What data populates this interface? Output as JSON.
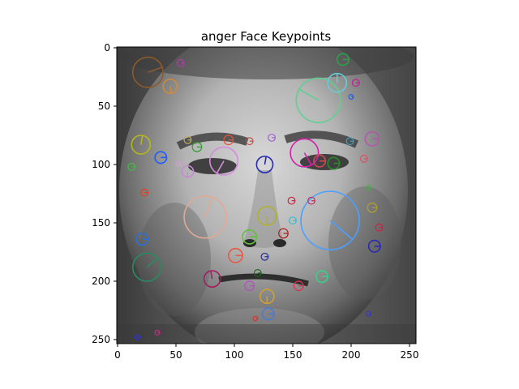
{
  "figure": {
    "title": "anger Face Keypoints"
  },
  "axes": {
    "x_range": [
      0,
      255
    ],
    "y_range": [
      255,
      0
    ],
    "x_ticks": [
      "0",
      "50",
      "100",
      "150",
      "200",
      "250"
    ],
    "y_ticks": [
      "0",
      "50",
      "100",
      "150",
      "200",
      "250"
    ]
  },
  "image": {
    "description_colors": {
      "background_dark": "#2a2a2a",
      "skin_light": "#b9b9b9"
    }
  },
  "keypoints": [
    {
      "x": 26,
      "y": 21,
      "r": 13,
      "angle": -20,
      "color": "#8b5a2b"
    },
    {
      "x": 45,
      "y": 33,
      "r": 6,
      "angle": 80,
      "color": "#d28a3a"
    },
    {
      "x": 54,
      "y": 13,
      "r": 3,
      "angle": 0,
      "color": "#b03ca8"
    },
    {
      "x": 20,
      "y": 83,
      "r": 8,
      "angle": -80,
      "color": "#b5b81a"
    },
    {
      "x": 37,
      "y": 94,
      "r": 5,
      "angle": 0,
      "color": "#1f5cff"
    },
    {
      "x": 60,
      "y": 106,
      "r": 5,
      "angle": 90,
      "color": "#c58bd3"
    },
    {
      "x": 68,
      "y": 85,
      "r": 4,
      "angle": 0,
      "color": "#2ca02c"
    },
    {
      "x": 91,
      "y": 97,
      "r": 12,
      "angle": 120,
      "color": "#d58ae0"
    },
    {
      "x": 95,
      "y": 79,
      "r": 4,
      "angle": 0,
      "color": "#e0553a"
    },
    {
      "x": 126,
      "y": 100,
      "r": 7,
      "angle": -80,
      "color": "#2b2bb0"
    },
    {
      "x": 160,
      "y": 90,
      "r": 12,
      "angle": 60,
      "color": "#d021a8"
    },
    {
      "x": 173,
      "y": 97,
      "r": 5,
      "angle": 0,
      "color": "#d6445a"
    },
    {
      "x": 185,
      "y": 99,
      "r": 5,
      "angle": 0,
      "color": "#2a8a2a"
    },
    {
      "x": 172,
      "y": 45,
      "r": 19,
      "angle": -150,
      "color": "#5fcf8f"
    },
    {
      "x": 188,
      "y": 30,
      "r": 8,
      "angle": -90,
      "color": "#69c9d4"
    },
    {
      "x": 193,
      "y": 10,
      "r": 5,
      "angle": 0,
      "color": "#2aa04a"
    },
    {
      "x": 182,
      "y": 148,
      "r": 25,
      "angle": 40,
      "color": "#4aa0ff"
    },
    {
      "x": 75,
      "y": 145,
      "r": 18,
      "angle": -70,
      "color": "#e0aa95"
    },
    {
      "x": 128,
      "y": 144,
      "r": 8,
      "angle": 90,
      "color": "#b0b030"
    },
    {
      "x": 113,
      "y": 162,
      "r": 6,
      "angle": 0,
      "color": "#60c23a"
    },
    {
      "x": 101,
      "y": 178,
      "r": 6,
      "angle": 0,
      "color": "#e65a40"
    },
    {
      "x": 81,
      "y": 198,
      "r": 7,
      "angle": -100,
      "color": "#a02060"
    },
    {
      "x": 25,
      "y": 188,
      "r": 12,
      "angle": -40,
      "color": "#2a8a60"
    },
    {
      "x": 21,
      "y": 164,
      "r": 5,
      "angle": 0,
      "color": "#2f6fd0"
    },
    {
      "x": 175,
      "y": 196,
      "r": 5,
      "angle": 0,
      "color": "#3ad088"
    },
    {
      "x": 128,
      "y": 213,
      "r": 6,
      "angle": 90,
      "color": "#d0a030"
    },
    {
      "x": 129,
      "y": 228,
      "r": 5,
      "angle": 0,
      "color": "#4a7ad8"
    },
    {
      "x": 220,
      "y": 170,
      "r": 5,
      "angle": 0,
      "color": "#2a2ab0"
    },
    {
      "x": 218,
      "y": 137,
      "r": 4,
      "angle": 0,
      "color": "#b0a030"
    },
    {
      "x": 224,
      "y": 154,
      "r": 3,
      "angle": 0,
      "color": "#d02040"
    },
    {
      "x": 218,
      "y": 78,
      "r": 6,
      "angle": 0,
      "color": "#b05aa8"
    },
    {
      "x": 150,
      "y": 148,
      "r": 3,
      "angle": 0,
      "color": "#30c0d0"
    },
    {
      "x": 149,
      "y": 131,
      "r": 3,
      "angle": 0,
      "color": "#d02040"
    },
    {
      "x": 142,
      "y": 159,
      "r": 4,
      "angle": 0,
      "color": "#b01818"
    },
    {
      "x": 155,
      "y": 204,
      "r": 4,
      "angle": 0,
      "color": "#e0304a"
    },
    {
      "x": 113,
      "y": 204,
      "r": 4,
      "angle": 0,
      "color": "#b050c0"
    },
    {
      "x": 120,
      "y": 193,
      "r": 3,
      "angle": 0,
      "color": "#1a6a1a"
    },
    {
      "x": 126,
      "y": 179,
      "r": 3,
      "angle": 0,
      "color": "#2a2a90"
    },
    {
      "x": 60,
      "y": 79,
      "r": 3,
      "angle": 0,
      "color": "#c0b060"
    },
    {
      "x": 113,
      "y": 80,
      "r": 3,
      "angle": 0,
      "color": "#c05040"
    },
    {
      "x": 132,
      "y": 77,
      "r": 3,
      "angle": 0,
      "color": "#a060d0"
    },
    {
      "x": 166,
      "y": 131,
      "r": 3,
      "angle": 0,
      "color": "#c03060"
    },
    {
      "x": 204,
      "y": 30,
      "r": 3,
      "angle": 0,
      "color": "#c02090"
    },
    {
      "x": 211,
      "y": 95,
      "r": 3,
      "angle": 0,
      "color": "#e05060"
    },
    {
      "x": 199,
      "y": 80,
      "r": 3,
      "angle": 0,
      "color": "#40a0c0"
    },
    {
      "x": 52,
      "y": 99,
      "r": 2,
      "angle": 0,
      "color": "#d0a0d0"
    },
    {
      "x": 23,
      "y": 124,
      "r": 3,
      "angle": 0,
      "color": "#e04020"
    },
    {
      "x": 12,
      "y": 102,
      "r": 3,
      "angle": 0,
      "color": "#40c040"
    },
    {
      "x": 200,
      "y": 42,
      "r": 2,
      "angle": 0,
      "color": "#2060e0"
    },
    {
      "x": 215,
      "y": 120,
      "r": 2,
      "angle": 0,
      "color": "#40b040"
    },
    {
      "x": 215,
      "y": 228,
      "r": 2,
      "angle": 0,
      "color": "#3a3ac0"
    },
    {
      "x": 118,
      "y": 232,
      "r": 2,
      "angle": 0,
      "color": "#e03030"
    },
    {
      "x": 17,
      "y": 248,
      "r": 2,
      "angle": 0,
      "color": "#3030e0"
    },
    {
      "x": 34,
      "y": 244,
      "r": 2,
      "angle": 0,
      "color": "#c03080"
    }
  ]
}
